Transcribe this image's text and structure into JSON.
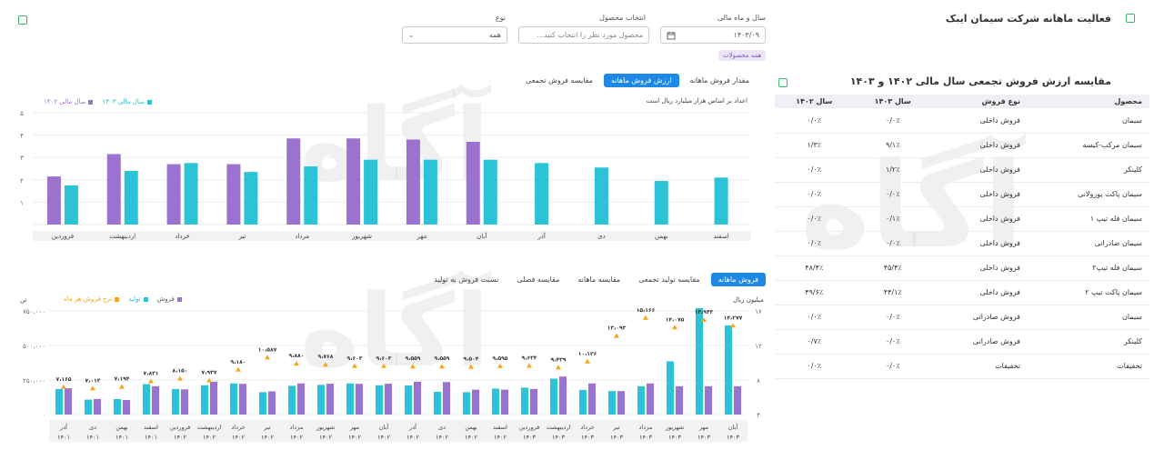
{
  "header": {
    "title": "فعالیت ماهانه شرکت سیمان ایبک",
    "filters": {
      "year_month_label": "سال و ماه مالی",
      "year_month_value": "۱۴۰۳/۰۹",
      "product_label": "انتخاب محصول",
      "product_placeholder": "محصول مورد نظر را انتخاب کنید...",
      "type_label": "نوع",
      "type_value": "همه",
      "chip": "همه محصولات"
    }
  },
  "top_chart": {
    "tabs": [
      "مقدار فروش ماهانه",
      "ارزش فروش ماهانه",
      "مقایسه فروش تجمعی"
    ],
    "active_tab": 1,
    "note": "اعداد بر اساس هزار میلیارد ریال است",
    "legend": [
      "سال مالی ۱۴۰۳",
      "سال مالی ۱۴۰۲"
    ]
  },
  "bottom_chart": {
    "tabs": [
      "فروش ماهانه",
      "مقایسه تولید تجمعی",
      "مقایسه ماهانه",
      "مقایسه فصلی",
      "نسبت فروش به تولید"
    ],
    "active_tab": 0,
    "legend": [
      "فروش",
      "تولید",
      "نرخ فروش هر ماه"
    ],
    "left_unit": "تن",
    "right_unit": "میلیون ریال"
  },
  "table": {
    "title": "مقایسه ارزش فروش تجمعی سال مالی ۱۴۰۲ و ۱۴۰۳",
    "headers": [
      "محصول",
      "نوع فروش",
      "سال ۱۴۰۳",
      "سال ۱۴۰۲"
    ],
    "rows": [
      [
        "سیمان",
        "فروش داخلی",
        "۰/۰٪",
        "۰/۰٪"
      ],
      [
        "سیمان مرکب-کیسه",
        "فروش داخلی",
        "۹/۱٪",
        "۱/۳٪"
      ],
      [
        "کلینکر",
        "فروش داخلی",
        "۱/۲٪",
        "۰/۰٪"
      ],
      [
        "سیمان پاکت پوزولانی",
        "فروش داخلی",
        "۰/۰٪",
        "۰/۰٪"
      ],
      [
        "سیمان فله تیپ ۱",
        "فروش داخلی",
        "۰/۱٪",
        "۰/۰٪"
      ],
      [
        "سیمان صادراتی",
        "فروش داخلی",
        "۰/۰٪",
        "۰/۰٪"
      ],
      [
        "سیمان فله تیپ۲",
        "فروش داخلی",
        "۴۵/۴٪",
        "۴۸/۴٪"
      ],
      [
        "سیمان پاکت تیپ ۲",
        "فروش داخلی",
        "۴۴/۱٪",
        "۴۹/۶٪"
      ],
      [
        "سیمان",
        "فروش صادراتی",
        "۰/۰٪",
        "۰/۰٪"
      ],
      [
        "کلینکر",
        "فروش صادراتی",
        "۰/۰٪",
        "۰/۷٪"
      ],
      [
        "تخفیفات",
        "تخفیفات",
        "۰/۰٪",
        "۰/۰٪"
      ]
    ]
  },
  "watermark": "آگاه",
  "colors": {
    "c1403": "#2cc3d6",
    "c1402": "#9b72cf",
    "rate": "#f5a623",
    "active_tab": "#1e88e5"
  },
  "chart_data": [
    {
      "type": "bar",
      "categories": [
        "اسفند",
        "بهمن",
        "دی",
        "آذر",
        "آبان",
        "مهر",
        "شهریور",
        "مرداد",
        "تیر",
        "خرداد",
        "اردیبهشت",
        "فروردین"
      ],
      "series": [
        {
          "name": "سال مالی ۱۴۰۳",
          "values": [
            2.1,
            1.95,
            2.55,
            2.75,
            2.9,
            2.9,
            2.9,
            2.6,
            2.35,
            2.75,
            2.4,
            1.75
          ]
        },
        {
          "name": "سال مالی ۱۴۰۲",
          "values": [
            null,
            null,
            null,
            null,
            3.7,
            3.8,
            3.85,
            3.85,
            2.7,
            2.7,
            3.15,
            2.15
          ]
        }
      ],
      "y_ticks": [
        "۰",
        "۱",
        "۲",
        "۳",
        "۴",
        "۵"
      ],
      "ylim": [
        0,
        5
      ]
    },
    {
      "type": "bar",
      "categories": [
        "آبان ۱۴۰۳",
        "مهر ۱۴۰۳",
        "شهریور ۱۴۰۳",
        "مرداد ۱۴۰۳",
        "تیر ۱۴۰۳",
        "خرداد ۱۴۰۳",
        "اردیبهشت ۱۴۰۳",
        "فروردین ۱۴۰۳",
        "اسفند ۱۴۰۲",
        "بهمن ۱۴۰۲",
        "دی ۱۴۰۲",
        "آذر ۱۴۰۲",
        "آبان ۱۴۰۲",
        "مهر ۱۴۰۲",
        "شهریور ۱۴۰۲",
        "مرداد ۱۴۰۲",
        "تیر ۱۴۰۲",
        "خرداد ۱۴۰۲",
        "اردیبهشت ۱۴۰۲",
        "فروردین ۱۴۰۲",
        "اسفند ۱۴۰۱",
        "بهمن ۱۴۰۱",
        "دی ۱۴۰۱",
        "آذر ۱۴۰۱"
      ],
      "month_labels": [
        "آبان",
        "مهر",
        "شهریور",
        "مرداد",
        "تیر",
        "خرداد",
        "اردیبهشت",
        "فروردین",
        "اسفند",
        "بهمن",
        "دی",
        "آذر",
        "آبان",
        "مهر",
        "شهریور",
        "مرداد",
        "تیر",
        "خرداد",
        "اردیبهشت",
        "فروردین",
        "اسفند",
        "بهمن",
        "دی",
        "آذر"
      ],
      "year_labels": [
        "۱۴۰۳",
        "۱۴۰۳",
        "۱۴۰۳",
        "۱۴۰۳",
        "۱۴۰۳",
        "۱۴۰۳",
        "۱۴۰۳",
        "۱۴۰۳",
        "۱۴۰۲",
        "۱۴۰۲",
        "۱۴۰۲",
        "۱۴۰۲",
        "۱۴۰۲",
        "۱۴۰۲",
        "۱۴۰۲",
        "۱۴۰۲",
        "۱۴۰۲",
        "۱۴۰۲",
        "۱۴۰۲",
        "۱۴۰۲",
        "۱۴۰۱",
        "۱۴۰۱",
        "۱۴۰۱",
        "۱۴۰۱"
      ],
      "series": [
        {
          "name": "تولید",
          "values": [
            645000,
            770000,
            385000,
            205000,
            170000,
            178000,
            260000,
            195000,
            188000,
            162000,
            165000,
            210000,
            212000,
            225000,
            215000,
            208000,
            162000,
            225000,
            212000,
            185000,
            220000,
            112000,
            108000,
            185000
          ]
        },
        {
          "name": "فروش",
          "values": [
            205000,
            205000,
            205000,
            225000,
            170000,
            225000,
            275000,
            185000,
            180000,
            180000,
            235000,
            238000,
            223000,
            222000,
            223000,
            225000,
            168000,
            222000,
            238000,
            182000,
            205000,
            105000,
            113000,
            190000
          ]
        },
        {
          "name": "نرخ فروش هر ماه",
          "values": [
            14277,
            14943,
            14075,
            15166,
            13093,
            10126,
            9439,
            9634,
            9595,
            9504,
            9559,
            9559,
            9603,
            9603,
            9768,
            9880,
            10587,
            9180,
            7937,
            8150,
            7831,
            7194,
            7013,
            7165
          ],
          "labels": [
            "۱۴،۲۷۷",
            "۱۴،۹۴۳",
            "۱۴،۰۷۵",
            "۱۵،۱۶۶",
            "۱۳،۰۹۳",
            "۱۰،۱۲۶",
            "۹،۴۳۹",
            "۹،۶۳۴",
            "۹،۵۹۵",
            "۹،۵۰۴",
            "۹،۵۵۹",
            "۹،۵۵۹",
            "۹،۶۰۳",
            "۹،۶۰۳",
            "۹،۷۶۸",
            "۹،۸۸۰",
            "۱۰،۵۸۷",
            "۹،۱۸۰",
            "۷،۹۳۷",
            "۸،۱۵۰",
            "۷،۸۳۱",
            "۷،۱۹۴",
            "۷،۰۱۳",
            "۷،۱۶۵"
          ]
        }
      ],
      "y_left_ticks": [
        "۰",
        "۲۵۰،۰۰۰",
        "۵۰۰،۰۰۰",
        "۷۵۰،۰۰۰"
      ],
      "ylim_left": [
        0,
        750000
      ],
      "y_right_ticks": [
        "۴",
        "۸",
        "۱۲",
        "۱۶"
      ],
      "ylim_right": [
        4,
        16
      ]
    }
  ]
}
